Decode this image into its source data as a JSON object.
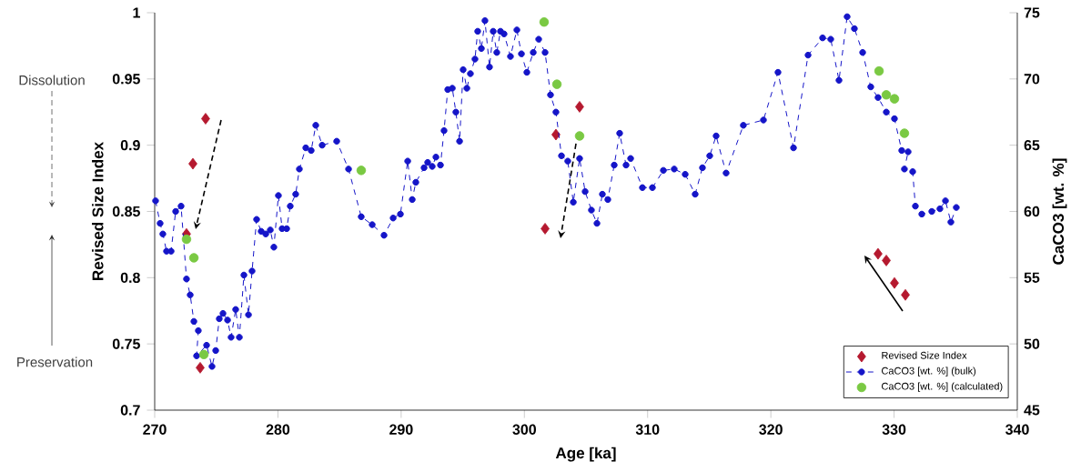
{
  "chart_data": {
    "type": "scatter",
    "xlabel": "Age [ka]",
    "ylabel": "Revised Size Index",
    "y2label": "CaCO3 [wt. %]",
    "annotations": [
      "Dissolution",
      "Preservation"
    ],
    "xlim": [
      270,
      340
    ],
    "xticks": [
      270,
      280,
      290,
      300,
      310,
      320,
      330,
      340
    ],
    "ylim": [
      0.7,
      1
    ],
    "yticks": [
      0.7,
      0.75,
      0.8,
      0.85,
      0.9,
      0.95,
      1
    ],
    "y2lim": [
      45,
      75
    ],
    "y2ticks": [
      45,
      50,
      55,
      60,
      65,
      70,
      75
    ],
    "legend": "bottom right",
    "series": [
      {
        "name": "Revised Size Index",
        "marker": "diamond",
        "color": "#b5192f",
        "x": [
          274.13,
          273.1,
          272.58,
          273.69,
          304.48,
          302.56,
          301.68,
          328.7,
          329.37,
          330.03,
          330.92
        ],
        "values": [
          0.92,
          0.886,
          0.833,
          0.732,
          0.929,
          0.908,
          0.837,
          0.818,
          0.813,
          0.796,
          0.787
        ]
      },
      {
        "name": "CaCO3 [wt. %] (bulk)",
        "type": "line",
        "marker": "circle",
        "line_style": "dashed",
        "axis": "y2",
        "color": "#1515c8",
        "x": [
          270.07,
          270.44,
          270.66,
          270.96,
          271.33,
          271.7,
          272.14,
          272.58,
          272.88,
          273.18,
          273.54,
          273.4,
          274.21,
          274.65,
          274.95,
          275.24,
          275.54,
          275.91,
          276.2,
          276.57,
          276.87,
          277.24,
          277.61,
          277.9,
          278.27,
          278.64,
          279.01,
          279.38,
          279.67,
          280.04,
          280.34,
          280.71,
          281.0,
          281.44,
          281.74,
          282.26,
          282.7,
          283.07,
          283.59,
          284.77,
          285.73,
          286.76,
          287.65,
          288.61,
          289.35,
          289.94,
          290.53,
          290.9,
          291.19,
          291.86,
          292.15,
          292.52,
          292.82,
          293.19,
          293.48,
          293.78,
          294.15,
          294.44,
          294.74,
          295.03,
          295.33,
          295.62,
          295.99,
          296.21,
          296.51,
          296.8,
          297.17,
          297.47,
          297.76,
          298.06,
          298.35,
          298.87,
          299.39,
          299.76,
          300.2,
          300.72,
          301.16,
          301.68,
          302.12,
          302.56,
          303.01,
          303.52,
          303.97,
          304.48,
          304.93,
          305.44,
          305.89,
          306.33,
          306.77,
          307.29,
          307.73,
          308.25,
          308.62,
          309.58,
          310.39,
          311.28,
          312.16,
          313.05,
          313.86,
          314.45,
          315.04,
          315.56,
          316.37,
          317.77,
          319.4,
          320.58,
          321.84,
          323.02,
          324.2,
          324.86,
          325.53,
          326.19,
          326.78,
          327.45,
          328.11,
          328.7,
          329.37,
          330.03,
          330.62,
          331.14,
          330.84,
          331.51,
          331.73,
          332.25,
          333.06,
          333.72,
          334.17,
          334.61,
          335.05
        ],
        "values": [
          60.8,
          59.1,
          58.3,
          57.0,
          57.0,
          60.0,
          60.4,
          54.9,
          53.7,
          51.7,
          51.0,
          49.1,
          49.9,
          48.3,
          49.5,
          51.9,
          52.3,
          51.8,
          50.5,
          52.6,
          50.5,
          55.2,
          52.2,
          55.5,
          59.4,
          58.5,
          58.3,
          58.6,
          57.3,
          61.2,
          58.7,
          58.7,
          60.4,
          61.3,
          63.2,
          64.8,
          64.6,
          66.5,
          65.0,
          65.3,
          63.2,
          59.6,
          59.0,
          58.2,
          59.5,
          59.8,
          63.8,
          60.9,
          62.2,
          63.3,
          63.7,
          63.4,
          64.1,
          63.5,
          66.1,
          69.2,
          69.3,
          67.5,
          65.3,
          70.7,
          69.3,
          70.4,
          71.5,
          73.6,
          72.3,
          74.4,
          70.9,
          73.6,
          72.0,
          73.6,
          73.4,
          71.7,
          73.7,
          71.9,
          70.5,
          72.0,
          73.0,
          72.0,
          68.8,
          67.5,
          64.2,
          63.8,
          60.7,
          64.0,
          61.5,
          60.1,
          59.1,
          61.3,
          60.9,
          63.5,
          65.9,
          63.5,
          64.0,
          61.8,
          61.8,
          63.1,
          63.2,
          62.8,
          61.3,
          63.3,
          64.2,
          65.7,
          62.9,
          66.5,
          66.9,
          70.5,
          64.8,
          71.8,
          73.1,
          73.0,
          69.9,
          74.7,
          73.8,
          72.0,
          69.4,
          68.6,
          67.5,
          67.0,
          64.6,
          64.5,
          63.2,
          63.0,
          60.4,
          59.8,
          60.0,
          60.2,
          60.8,
          59.2,
          60.3
        ]
      },
      {
        "name": "CaCO3 [wt. %] (calculated)",
        "marker": "circle",
        "axis": "y2",
        "color": "#7ac943",
        "x": [
          272.58,
          273.18,
          273.99,
          286.76,
          301.6,
          302.64,
          304.48,
          328.78,
          329.37,
          330.03,
          330.84
        ],
        "values": [
          57.9,
          56.5,
          49.2,
          63.1,
          74.3,
          69.6,
          65.7,
          70.6,
          68.8,
          68.5,
          65.9
        ]
      }
    ]
  }
}
